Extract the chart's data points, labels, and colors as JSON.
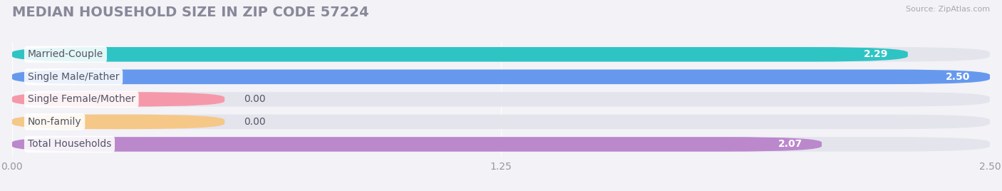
{
  "title": "MEDIAN HOUSEHOLD SIZE IN ZIP CODE 57224",
  "source": "Source: ZipAtlas.com",
  "categories": [
    "Married-Couple",
    "Single Male/Father",
    "Single Female/Mother",
    "Non-family",
    "Total Households"
  ],
  "values": [
    2.29,
    2.5,
    0.0,
    0.0,
    2.07
  ],
  "bar_colors": [
    "#2ec4c4",
    "#6699ee",
    "#f599aa",
    "#f5c888",
    "#bb88cc"
  ],
  "background_color": "#f2f2f7",
  "bar_background_color": "#e4e4ed",
  "xlim_max": 2.5,
  "xticks": [
    0.0,
    1.25,
    2.5
  ],
  "xtick_labels": [
    "0.00",
    "1.25",
    "2.50"
  ],
  "label_fontsize": 10,
  "value_fontsize": 10,
  "title_fontsize": 14,
  "title_color": "#888899",
  "label_text_color": "#555566",
  "value_text_color": "white",
  "source_color": "#aaaaaa",
  "bar_height": 0.65,
  "bar_gap": 0.35
}
